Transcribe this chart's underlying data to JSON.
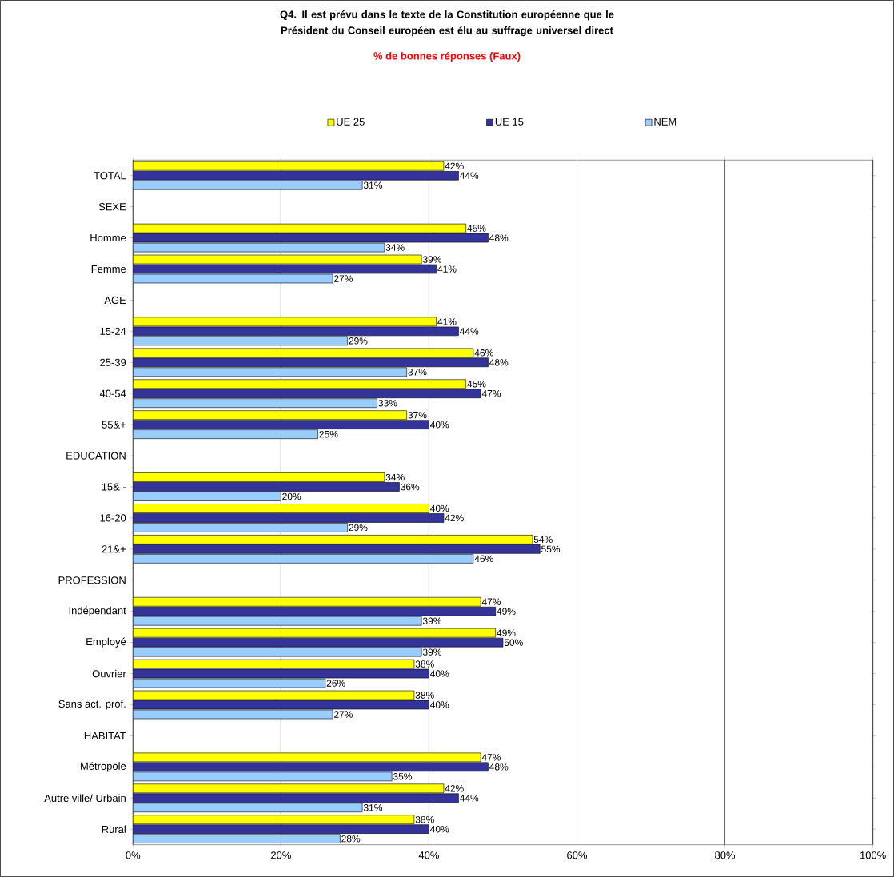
{
  "chart_data": {
    "type": "bar",
    "orientation": "horizontal",
    "title": "Q4. Il est prévu dans le texte de la Constitution européenne que le Président du Conseil européen est élu au suffrage universel direct",
    "subtitle": "% de bonnes réponses (Faux)",
    "categories": [
      "TOTAL",
      "SEXE",
      "Homme",
      "Femme",
      "AGE",
      "15-24",
      "25-39",
      "40-54",
      "55&+",
      "EDUCATION",
      "15& -",
      "16-20",
      "21&+",
      "PROFESSION",
      "Indépendant",
      "Employé",
      "Ouvrier",
      "Sans act. prof.",
      "HABITAT",
      "Métropole",
      "Autre ville/ Urbain",
      "Rural"
    ],
    "series": [
      {
        "name": "UE 25",
        "color": "#ffff00",
        "values": [
          42,
          null,
          45,
          39,
          null,
          41,
          46,
          45,
          37,
          null,
          34,
          40,
          54,
          null,
          47,
          49,
          38,
          38,
          null,
          47,
          42,
          38
        ],
        "value_labels": [
          "42%",
          null,
          "45%",
          "39%",
          null,
          "41%",
          "46%",
          "45%",
          "37%",
          null,
          "34%",
          "40%",
          "54%",
          null,
          "47%",
          "49%",
          "38%",
          "38%",
          null,
          "47%",
          "42%",
          "38%"
        ]
      },
      {
        "name": "UE 15",
        "color": "#333399",
        "values": [
          44,
          null,
          48,
          41,
          null,
          44,
          48,
          47,
          40,
          null,
          36,
          42,
          55,
          null,
          49,
          50,
          40,
          40,
          null,
          48,
          44,
          40
        ],
        "value_labels": [
          "44%",
          null,
          "48%",
          "41%",
          null,
          "44%",
          "48%",
          "47%",
          "40%",
          null,
          "36%",
          "42%",
          "55%",
          null,
          "49%",
          "50%",
          "40%",
          "40%",
          null,
          "48%",
          "44%",
          "40%"
        ]
      },
      {
        "name": "NEM",
        "color": "#99ccff",
        "values": [
          31,
          null,
          34,
          27,
          null,
          29,
          37,
          33,
          25,
          null,
          20,
          29,
          46,
          null,
          39,
          39,
          26,
          27,
          null,
          35,
          31,
          28
        ],
        "value_labels": [
          "31%",
          null,
          "34%",
          "27%",
          null,
          "29%",
          "37%",
          "33%",
          "25%",
          null,
          "20%",
          "29%",
          "46%",
          null,
          "39%",
          "39%",
          "26%",
          "27%",
          null,
          "35%",
          "31%",
          "28%"
        ]
      }
    ],
    "xlim": [
      0,
      100
    ],
    "xticks": [
      {
        "value": 0,
        "label": "0%"
      },
      {
        "value": 20,
        "label": "20%"
      },
      {
        "value": 40,
        "label": "40%"
      },
      {
        "value": 60,
        "label": "60%"
      },
      {
        "value": 80,
        "label": "80%"
      },
      {
        "value": 100,
        "label": "100%"
      }
    ],
    "grid": "x",
    "legend": "top"
  }
}
